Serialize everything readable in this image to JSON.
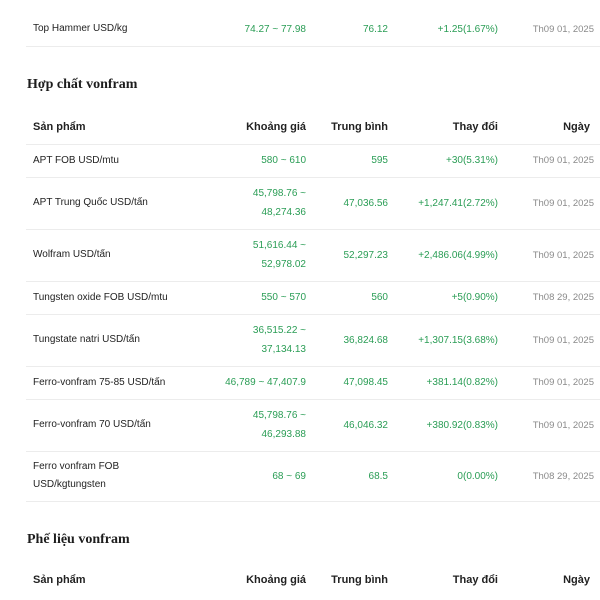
{
  "top_row": {
    "name": "Top Hammer USD/kg",
    "range": "74.27 ~ 77.98",
    "avg": "76.12",
    "change": "+1.25(1.67%)",
    "date": "Th09 01, 2025"
  },
  "compounds": {
    "title": "Hợp chất vonfram",
    "headers": {
      "product": "Sản phẩm",
      "range": "Khoảng giá",
      "avg": "Trung bình",
      "change": "Thay đổi",
      "date": "Ngày"
    },
    "rows": [
      {
        "name": [
          "APT FOB USD/mtu"
        ],
        "range": [
          "580 ~ 610"
        ],
        "avg": "595",
        "change": "+30(5.31%)",
        "date": "Th09 01, 2025"
      },
      {
        "name": [
          "APT Trung Quốc USD/tấn"
        ],
        "range": [
          "45,798.76 ~",
          "48,274.36"
        ],
        "avg": "47,036.56",
        "change": "+1,247.41(2.72%)",
        "date": "Th09 01, 2025"
      },
      {
        "name": [
          "Wolfram USD/tấn"
        ],
        "range": [
          "51,616.44 ~",
          "52,978.02"
        ],
        "avg": "52,297.23",
        "change": "+2,486.06(4.99%)",
        "date": "Th09 01, 2025"
      },
      {
        "name": [
          "Tungsten oxide FOB USD/mtu"
        ],
        "range": [
          "550 ~ 570"
        ],
        "avg": "560",
        "change": "+5(0.90%)",
        "date": "Th08 29, 2025"
      },
      {
        "name": [
          "Tungstate natri USD/tấn"
        ],
        "range": [
          "36,515.22 ~",
          "37,134.13"
        ],
        "avg": "36,824.68",
        "change": "+1,307.15(3.68%)",
        "date": "Th09 01, 2025"
      },
      {
        "name": [
          "Ferro-vonfram 75-85 USD/tấn"
        ],
        "range": [
          "46,789 ~ 47,407.9"
        ],
        "avg": "47,098.45",
        "change": "+381.14(0.82%)",
        "date": "Th09 01, 2025"
      },
      {
        "name": [
          "Ferro-vonfram 70 USD/tấn"
        ],
        "range": [
          "45,798.76 ~",
          "46,293.88"
        ],
        "avg": "46,046.32",
        "change": "+380.92(0.83%)",
        "date": "Th09 01, 2025"
      },
      {
        "name": [
          "Ferro vonfram FOB",
          "USD/kgtungsten"
        ],
        "range": [
          "68 ~ 69"
        ],
        "avg": "68.5",
        "change": "0(0.00%)",
        "date": "Th08 29, 2025"
      }
    ]
  },
  "scrap": {
    "title": "Phế liệu vonfram",
    "headers": {
      "product": "Sản phẩm",
      "range": "Khoảng giá",
      "avg": "Trung bình",
      "change": "Thay đổi",
      "date": "Ngày"
    }
  },
  "colors": {
    "up": "#2a9d55",
    "neutral": "#222222",
    "date": "#8a8a8a"
  }
}
